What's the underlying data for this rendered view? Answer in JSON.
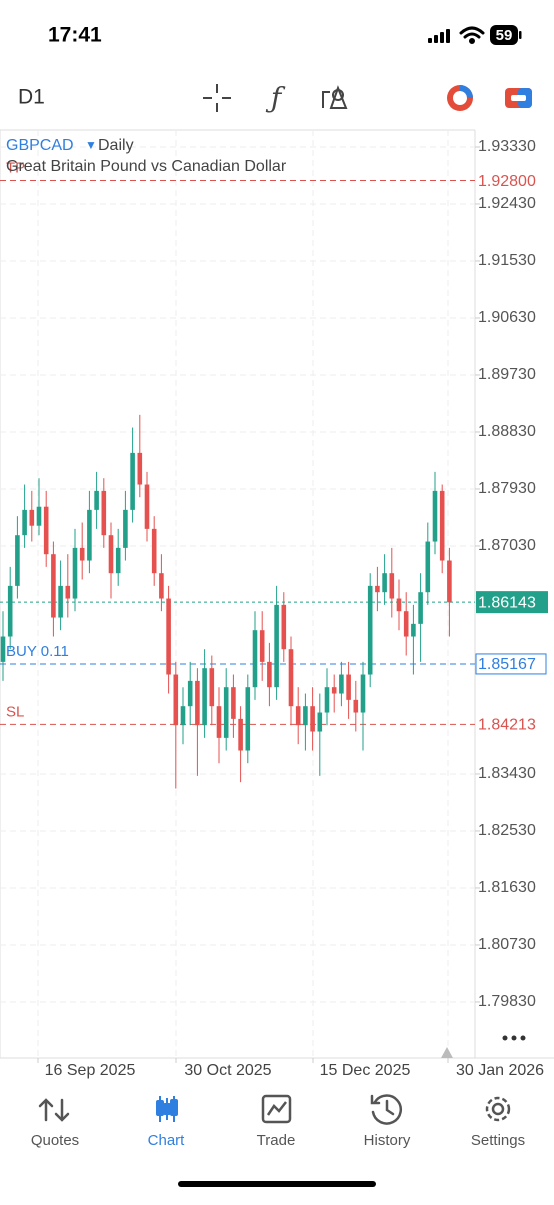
{
  "status": {
    "time": "17:41",
    "battery": "59"
  },
  "toolbar": {
    "timeframe": "D1"
  },
  "tabs": [
    "Quotes",
    "Chart",
    "Trade",
    "History",
    "Settings"
  ],
  "chart_data": {
    "type": "candlestick",
    "title": "GBPCAD",
    "period": "Daily",
    "subtitle": "Great Britain Pound vs Canadian Dollar",
    "up_color": "#22a08a",
    "down_color": "#e4514f",
    "ylim": [
      1.78945,
      1.93598
    ],
    "yticks": [
      {
        "value": 1.9333,
        "label": "1.93330"
      },
      {
        "value": 1.9243,
        "label": "1.92430"
      },
      {
        "value": 1.9153,
        "label": "1.91530"
      },
      {
        "value": 1.9063,
        "label": "1.90630"
      },
      {
        "value": 1.8973,
        "label": "1.89730"
      },
      {
        "value": 1.8883,
        "label": "1.88830"
      },
      {
        "value": 1.8793,
        "label": "1.87930"
      },
      {
        "value": 1.8703,
        "label": "1.87030"
      },
      {
        "value": 1.8343,
        "label": "1.83430"
      },
      {
        "value": 1.8253,
        "label": "1.82530"
      },
      {
        "value": 1.8163,
        "label": "1.81630"
      },
      {
        "value": 1.8073,
        "label": "1.80730"
      },
      {
        "value": 1.7983,
        "label": "1.79830"
      }
    ],
    "xtick_labels": [
      "16 Sep 2025",
      "30 Oct 2025",
      "15 Dec 2025",
      "30 Jan 2026"
    ],
    "grid": true,
    "open": [
      1.852,
      1.856,
      1.864,
      1.872,
      1.876,
      1.8735,
      1.8765,
      1.869,
      1.859,
      1.864,
      1.862,
      1.87,
      1.868,
      1.876,
      1.879,
      1.872,
      1.866,
      1.87,
      1.876,
      1.885,
      1.88,
      1.873,
      1.866,
      1.862,
      1.85,
      1.842,
      1.845,
      1.849,
      1.842,
      1.851,
      1.845,
      1.84,
      1.848,
      1.843,
      1.838,
      1.848,
      1.857,
      1.852,
      1.848,
      1.861,
      1.854,
      1.845,
      1.842,
      1.845,
      1.841,
      1.844,
      1.848,
      1.847,
      1.85,
      1.846,
      1.844,
      1.85,
      1.864,
      1.863,
      1.866,
      1.862,
      1.86,
      1.856,
      1.858,
      1.863,
      1.871,
      1.879,
      1.868
    ],
    "high": [
      1.86,
      1.867,
      1.875,
      1.88,
      1.879,
      1.881,
      1.879,
      1.871,
      1.868,
      1.869,
      1.873,
      1.874,
      1.879,
      1.882,
      1.881,
      1.874,
      1.873,
      1.879,
      1.889,
      1.891,
      1.882,
      1.875,
      1.869,
      1.864,
      1.852,
      1.848,
      1.852,
      1.851,
      1.854,
      1.853,
      1.848,
      1.851,
      1.85,
      1.845,
      1.85,
      1.86,
      1.86,
      1.855,
      1.864,
      1.863,
      1.856,
      1.848,
      1.847,
      1.848,
      1.847,
      1.851,
      1.85,
      1.852,
      1.852,
      1.849,
      1.852,
      1.866,
      1.867,
      1.869,
      1.87,
      1.865,
      1.863,
      1.861,
      1.866,
      1.874,
      1.882,
      1.88,
      1.87
    ],
    "low": [
      1.849,
      1.854,
      1.862,
      1.87,
      1.871,
      1.872,
      1.867,
      1.856,
      1.857,
      1.859,
      1.86,
      1.865,
      1.866,
      1.873,
      1.87,
      1.862,
      1.864,
      1.868,
      1.874,
      1.878,
      1.871,
      1.864,
      1.86,
      1.847,
      1.832,
      1.839,
      1.842,
      1.834,
      1.84,
      1.842,
      1.836,
      1.838,
      1.84,
      1.833,
      1.836,
      1.846,
      1.849,
      1.845,
      1.846,
      1.852,
      1.842,
      1.839,
      1.838,
      1.838,
      1.834,
      1.842,
      1.844,
      1.845,
      1.843,
      1.841,
      1.838,
      1.848,
      1.86,
      1.861,
      1.859,
      1.857,
      1.853,
      1.85,
      1.852,
      1.861,
      1.869,
      1.866,
      1.856
    ],
    "close": [
      1.856,
      1.864,
      1.872,
      1.876,
      1.8735,
      1.8765,
      1.869,
      1.859,
      1.864,
      1.862,
      1.87,
      1.868,
      1.876,
      1.879,
      1.872,
      1.866,
      1.87,
      1.876,
      1.885,
      1.88,
      1.873,
      1.866,
      1.862,
      1.85,
      1.842,
      1.845,
      1.849,
      1.842,
      1.851,
      1.845,
      1.84,
      1.848,
      1.843,
      1.838,
      1.848,
      1.857,
      1.852,
      1.848,
      1.861,
      1.854,
      1.845,
      1.842,
      1.845,
      1.841,
      1.844,
      1.848,
      1.847,
      1.85,
      1.846,
      1.844,
      1.85,
      1.864,
      1.863,
      1.866,
      1.862,
      1.86,
      1.856,
      1.858,
      1.863,
      1.871,
      1.879,
      1.868,
      1.8614
    ],
    "levels": [
      {
        "name": "TP",
        "value": 1.928,
        "value_label": "1.92800",
        "color": "#d9534f",
        "box": "none"
      },
      {
        "value": 1.86143,
        "value_label": "1.86143",
        "color": "#22a08a",
        "box": "fill"
      },
      {
        "name": "BUY 0.11",
        "value": 1.85167,
        "value_label": "1.85167",
        "color": "#2f7fe0",
        "box": "outline"
      },
      {
        "name": "SL",
        "value": 1.84213,
        "value_label": "1.84213",
        "color": "#d9534f",
        "box": "none"
      }
    ]
  }
}
